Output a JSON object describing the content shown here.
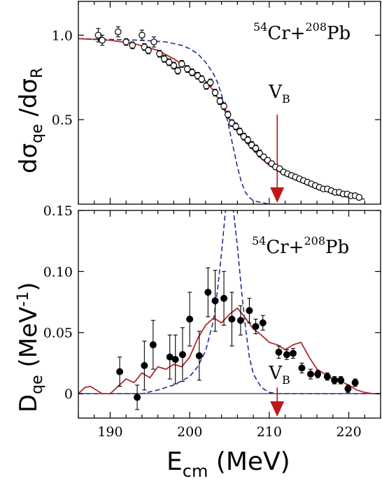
{
  "colors": {
    "model_solid": "#b02a2a",
    "model_dashed": "#1f2f8f",
    "barrier": "#c01818",
    "axis": "#000000"
  },
  "chart_data": [
    {
      "type": "scatter",
      "panel": "top",
      "annotation": {
        "a1": "54",
        "el1": "Cr+",
        "a2": "208",
        "el2": "Pb"
      },
      "ylabel": {
        "main": "dσ",
        "sub1": "qe",
        "mid": " /dσ",
        "sub2": "R"
      },
      "xlim": [
        186,
        224
      ],
      "ylim": [
        0.0,
        1.2
      ],
      "yticks": [
        "0.5",
        "1.0"
      ],
      "barrier": {
        "x": 211,
        "label": "V",
        "sub": "B"
      },
      "points": [
        [
          188.5,
          1.0,
          0.04
        ],
        [
          189,
          0.97,
          0.03
        ],
        [
          191,
          1.02,
          0.03
        ],
        [
          192,
          0.96,
          0.02
        ],
        [
          192.8,
          0.94,
          0.02
        ],
        [
          194,
          1.0,
          0.03
        ],
        [
          194.3,
          0.93,
          0.02
        ],
        [
          194.8,
          0.91,
          0.02
        ],
        [
          195.5,
          0.96,
          0.03
        ],
        [
          196.2,
          0.89,
          0.02
        ],
        [
          196.8,
          0.86,
          0.02
        ],
        [
          197.4,
          0.84,
          0.02
        ],
        [
          198,
          0.82,
          0.02
        ],
        [
          198.5,
          0.79,
          0.02
        ],
        [
          199,
          0.83,
          0.02
        ],
        [
          199.7,
          0.8,
          0.02
        ],
        [
          200.3,
          0.78,
          0.02
        ],
        [
          201,
          0.76,
          0.02
        ],
        [
          201.5,
          0.74,
          0.02
        ],
        [
          202.1,
          0.7,
          0.02
        ],
        [
          202.6,
          0.72,
          0.02
        ],
        [
          203.2,
          0.66,
          0.02
        ],
        [
          203.8,
          0.61,
          0.02
        ],
        [
          204.3,
          0.58,
          0.02
        ],
        [
          204.8,
          0.53,
          0.02
        ],
        [
          205.3,
          0.48,
          0.02
        ],
        [
          205.8,
          0.46,
          0.02
        ],
        [
          206.3,
          0.43,
          0.02
        ],
        [
          206.8,
          0.4,
          0.02
        ],
        [
          207.3,
          0.38,
          0.02
        ],
        [
          207.8,
          0.35,
          0.02
        ],
        [
          208.3,
          0.33,
          0.02
        ],
        [
          208.8,
          0.3,
          0.02
        ],
        [
          209.3,
          0.28,
          0.015
        ],
        [
          209.8,
          0.26,
          0.015
        ],
        [
          210.3,
          0.24,
          0.015
        ],
        [
          210.8,
          0.22,
          0.015
        ],
        [
          211.3,
          0.21,
          0.015
        ],
        [
          211.8,
          0.19,
          0.015
        ],
        [
          212.3,
          0.18,
          0.012
        ],
        [
          212.8,
          0.17,
          0.012
        ],
        [
          213.3,
          0.16,
          0.012
        ],
        [
          213.8,
          0.15,
          0.012
        ],
        [
          214.3,
          0.14,
          0.012
        ],
        [
          214.8,
          0.13,
          0.01
        ],
        [
          215.3,
          0.12,
          0.01
        ],
        [
          215.8,
          0.11,
          0.01
        ],
        [
          216.3,
          0.1,
          0.01
        ],
        [
          216.8,
          0.09,
          0.01
        ],
        [
          217.3,
          0.09,
          0.01
        ],
        [
          217.8,
          0.08,
          0.01
        ],
        [
          218.3,
          0.07,
          0.01
        ],
        [
          218.8,
          0.07,
          0.01
        ],
        [
          219.3,
          0.06,
          0.01
        ],
        [
          219.8,
          0.06,
          0.01
        ],
        [
          220.3,
          0.05,
          0.01
        ],
        [
          220.8,
          0.05,
          0.01
        ],
        [
          221.3,
          0.04,
          0.01
        ]
      ],
      "solid_curve": [
        [
          186,
          0.98
        ],
        [
          190,
          0.97
        ],
        [
          193,
          0.95
        ],
        [
          196,
          0.91
        ],
        [
          198,
          0.86
        ],
        [
          200,
          0.8
        ],
        [
          201,
          0.77
        ],
        [
          202,
          0.73
        ],
        [
          203,
          0.67
        ],
        [
          204,
          0.59
        ],
        [
          205,
          0.5
        ],
        [
          206,
          0.43
        ],
        [
          207,
          0.37
        ],
        [
          208,
          0.32
        ],
        [
          209,
          0.27
        ],
        [
          210,
          0.23
        ],
        [
          211,
          0.2
        ],
        [
          212,
          0.17
        ],
        [
          213,
          0.15
        ],
        [
          214,
          0.13
        ],
        [
          215,
          0.11
        ],
        [
          216,
          0.09
        ],
        [
          217,
          0.08
        ],
        [
          218,
          0.06
        ],
        [
          219,
          0.05
        ],
        [
          220,
          0.04
        ],
        [
          221,
          0.035
        ],
        [
          222,
          0.03
        ]
      ],
      "dashed_curve": [
        [
          186,
          0.98
        ],
        [
          190,
          0.975
        ],
        [
          194,
          0.97
        ],
        [
          197,
          0.96
        ],
        [
          199,
          0.94
        ],
        [
          200,
          0.92
        ],
        [
          201,
          0.89
        ],
        [
          202,
          0.84
        ],
        [
          203,
          0.77
        ],
        [
          203.5,
          0.72
        ],
        [
          204,
          0.65
        ],
        [
          204.5,
          0.55
        ],
        [
          205,
          0.44
        ],
        [
          205.5,
          0.33
        ],
        [
          206,
          0.22
        ],
        [
          206.5,
          0.13
        ],
        [
          207,
          0.07
        ],
        [
          207.5,
          0.04
        ],
        [
          208,
          0.02
        ],
        [
          209,
          0.01
        ],
        [
          210,
          0.0
        ]
      ]
    },
    {
      "type": "scatter",
      "panel": "bottom",
      "annotation": {
        "a1": "54",
        "el1": "Cr+",
        "a2": "208",
        "el2": "Pb"
      },
      "ylabel": {
        "main": "D",
        "sub": "qe",
        "unit": " (MeV",
        "sup": "-1",
        "close": ")"
      },
      "xlabel": {
        "main": "E",
        "sub": "cm",
        "unit": " (MeV)"
      },
      "xlim": [
        186,
        224
      ],
      "ylim": [
        -0.02,
        0.15
      ],
      "yticks": [
        "0",
        "0.05",
        "0.10",
        "0.15"
      ],
      "xticks": [
        "190",
        "200",
        "210",
        "220"
      ],
      "barrier": {
        "x": 211,
        "label": "V",
        "sub": "B"
      },
      "points": [
        [
          191.2,
          0.018,
          0.012
        ],
        [
          193.4,
          -0.003,
          0.01
        ],
        [
          194.3,
          0.023,
          0.02
        ],
        [
          195.4,
          0.04,
          0.02
        ],
        [
          197.5,
          0.03,
          0.018
        ],
        [
          198.2,
          0.028,
          0.02
        ],
        [
          199.1,
          0.032,
          0.022
        ],
        [
          200.0,
          0.061,
          0.022
        ],
        [
          201.2,
          0.031,
          0.02
        ],
        [
          202.3,
          0.083,
          0.02
        ],
        [
          203.2,
          0.076,
          0.025
        ],
        [
          204.3,
          0.078,
          0.022
        ],
        [
          205.3,
          0.061,
          0.022
        ],
        [
          206.4,
          0.06,
          0.012
        ],
        [
          207.5,
          0.068,
          0.01
        ],
        [
          208.3,
          0.055,
          0.006
        ],
        [
          209.2,
          0.058,
          0.006
        ],
        [
          211.2,
          0.034,
          0.005
        ],
        [
          212.2,
          0.032,
          0.004
        ],
        [
          213.0,
          0.033,
          0.004
        ],
        [
          214.1,
          0.021,
          0.004
        ],
        [
          215.2,
          0.016,
          0.004
        ],
        [
          216.1,
          0.016,
          0.003
        ],
        [
          217.3,
          0.014,
          0.003
        ],
        [
          218.2,
          0.011,
          0.003
        ],
        [
          219.0,
          0.011,
          0.003
        ],
        [
          219.9,
          0.004,
          0.003
        ],
        [
          220.8,
          0.009,
          0.003
        ]
      ],
      "solid_curve": [
        [
          186,
          0.0
        ],
        [
          186.8,
          0.005
        ],
        [
          187.5,
          0.006
        ],
        [
          188,
          0.004
        ],
        [
          189,
          0.0
        ],
        [
          190,
          0.0
        ],
        [
          191,
          0.006
        ],
        [
          192,
          0.012
        ],
        [
          193,
          0.009
        ],
        [
          194,
          0.017
        ],
        [
          195,
          0.013
        ],
        [
          196,
          0.022
        ],
        [
          197,
          0.02
        ],
        [
          198,
          0.024
        ],
        [
          199,
          0.022
        ],
        [
          200,
          0.03
        ],
        [
          201,
          0.045
        ],
        [
          202,
          0.056
        ],
        [
          203,
          0.062
        ],
        [
          204,
          0.058
        ],
        [
          205,
          0.065
        ],
        [
          206,
          0.07
        ],
        [
          207,
          0.062
        ],
        [
          208,
          0.053
        ],
        [
          209,
          0.048
        ],
        [
          210,
          0.042
        ],
        [
          211,
          0.04
        ],
        [
          212,
          0.036
        ],
        [
          213,
          0.04
        ],
        [
          214,
          0.042
        ],
        [
          215,
          0.03
        ],
        [
          216,
          0.02
        ],
        [
          217,
          0.016
        ],
        [
          218,
          0.012
        ],
        [
          219,
          0.01
        ],
        [
          220,
          0.007
        ],
        [
          221,
          0.003
        ],
        [
          222,
          0.001
        ],
        [
          223,
          0.0
        ],
        [
          224,
          0.0
        ]
      ],
      "dashed_curve": [
        [
          186,
          0.0
        ],
        [
          194,
          0.0
        ],
        [
          196,
          0.003
        ],
        [
          198,
          0.007
        ],
        [
          200,
          0.014
        ],
        [
          201,
          0.022
        ],
        [
          202,
          0.035
        ],
        [
          203,
          0.06
        ],
        [
          203.5,
          0.085
        ],
        [
          204,
          0.115
        ],
        [
          204.5,
          0.15
        ],
        [
          205.5,
          0.15
        ],
        [
          206,
          0.12
        ],
        [
          206.5,
          0.085
        ],
        [
          207,
          0.055
        ],
        [
          207.5,
          0.03
        ],
        [
          208,
          0.016
        ],
        [
          209,
          0.005
        ],
        [
          210,
          0.001
        ],
        [
          211,
          0.0
        ],
        [
          224,
          0.0
        ]
      ]
    }
  ]
}
